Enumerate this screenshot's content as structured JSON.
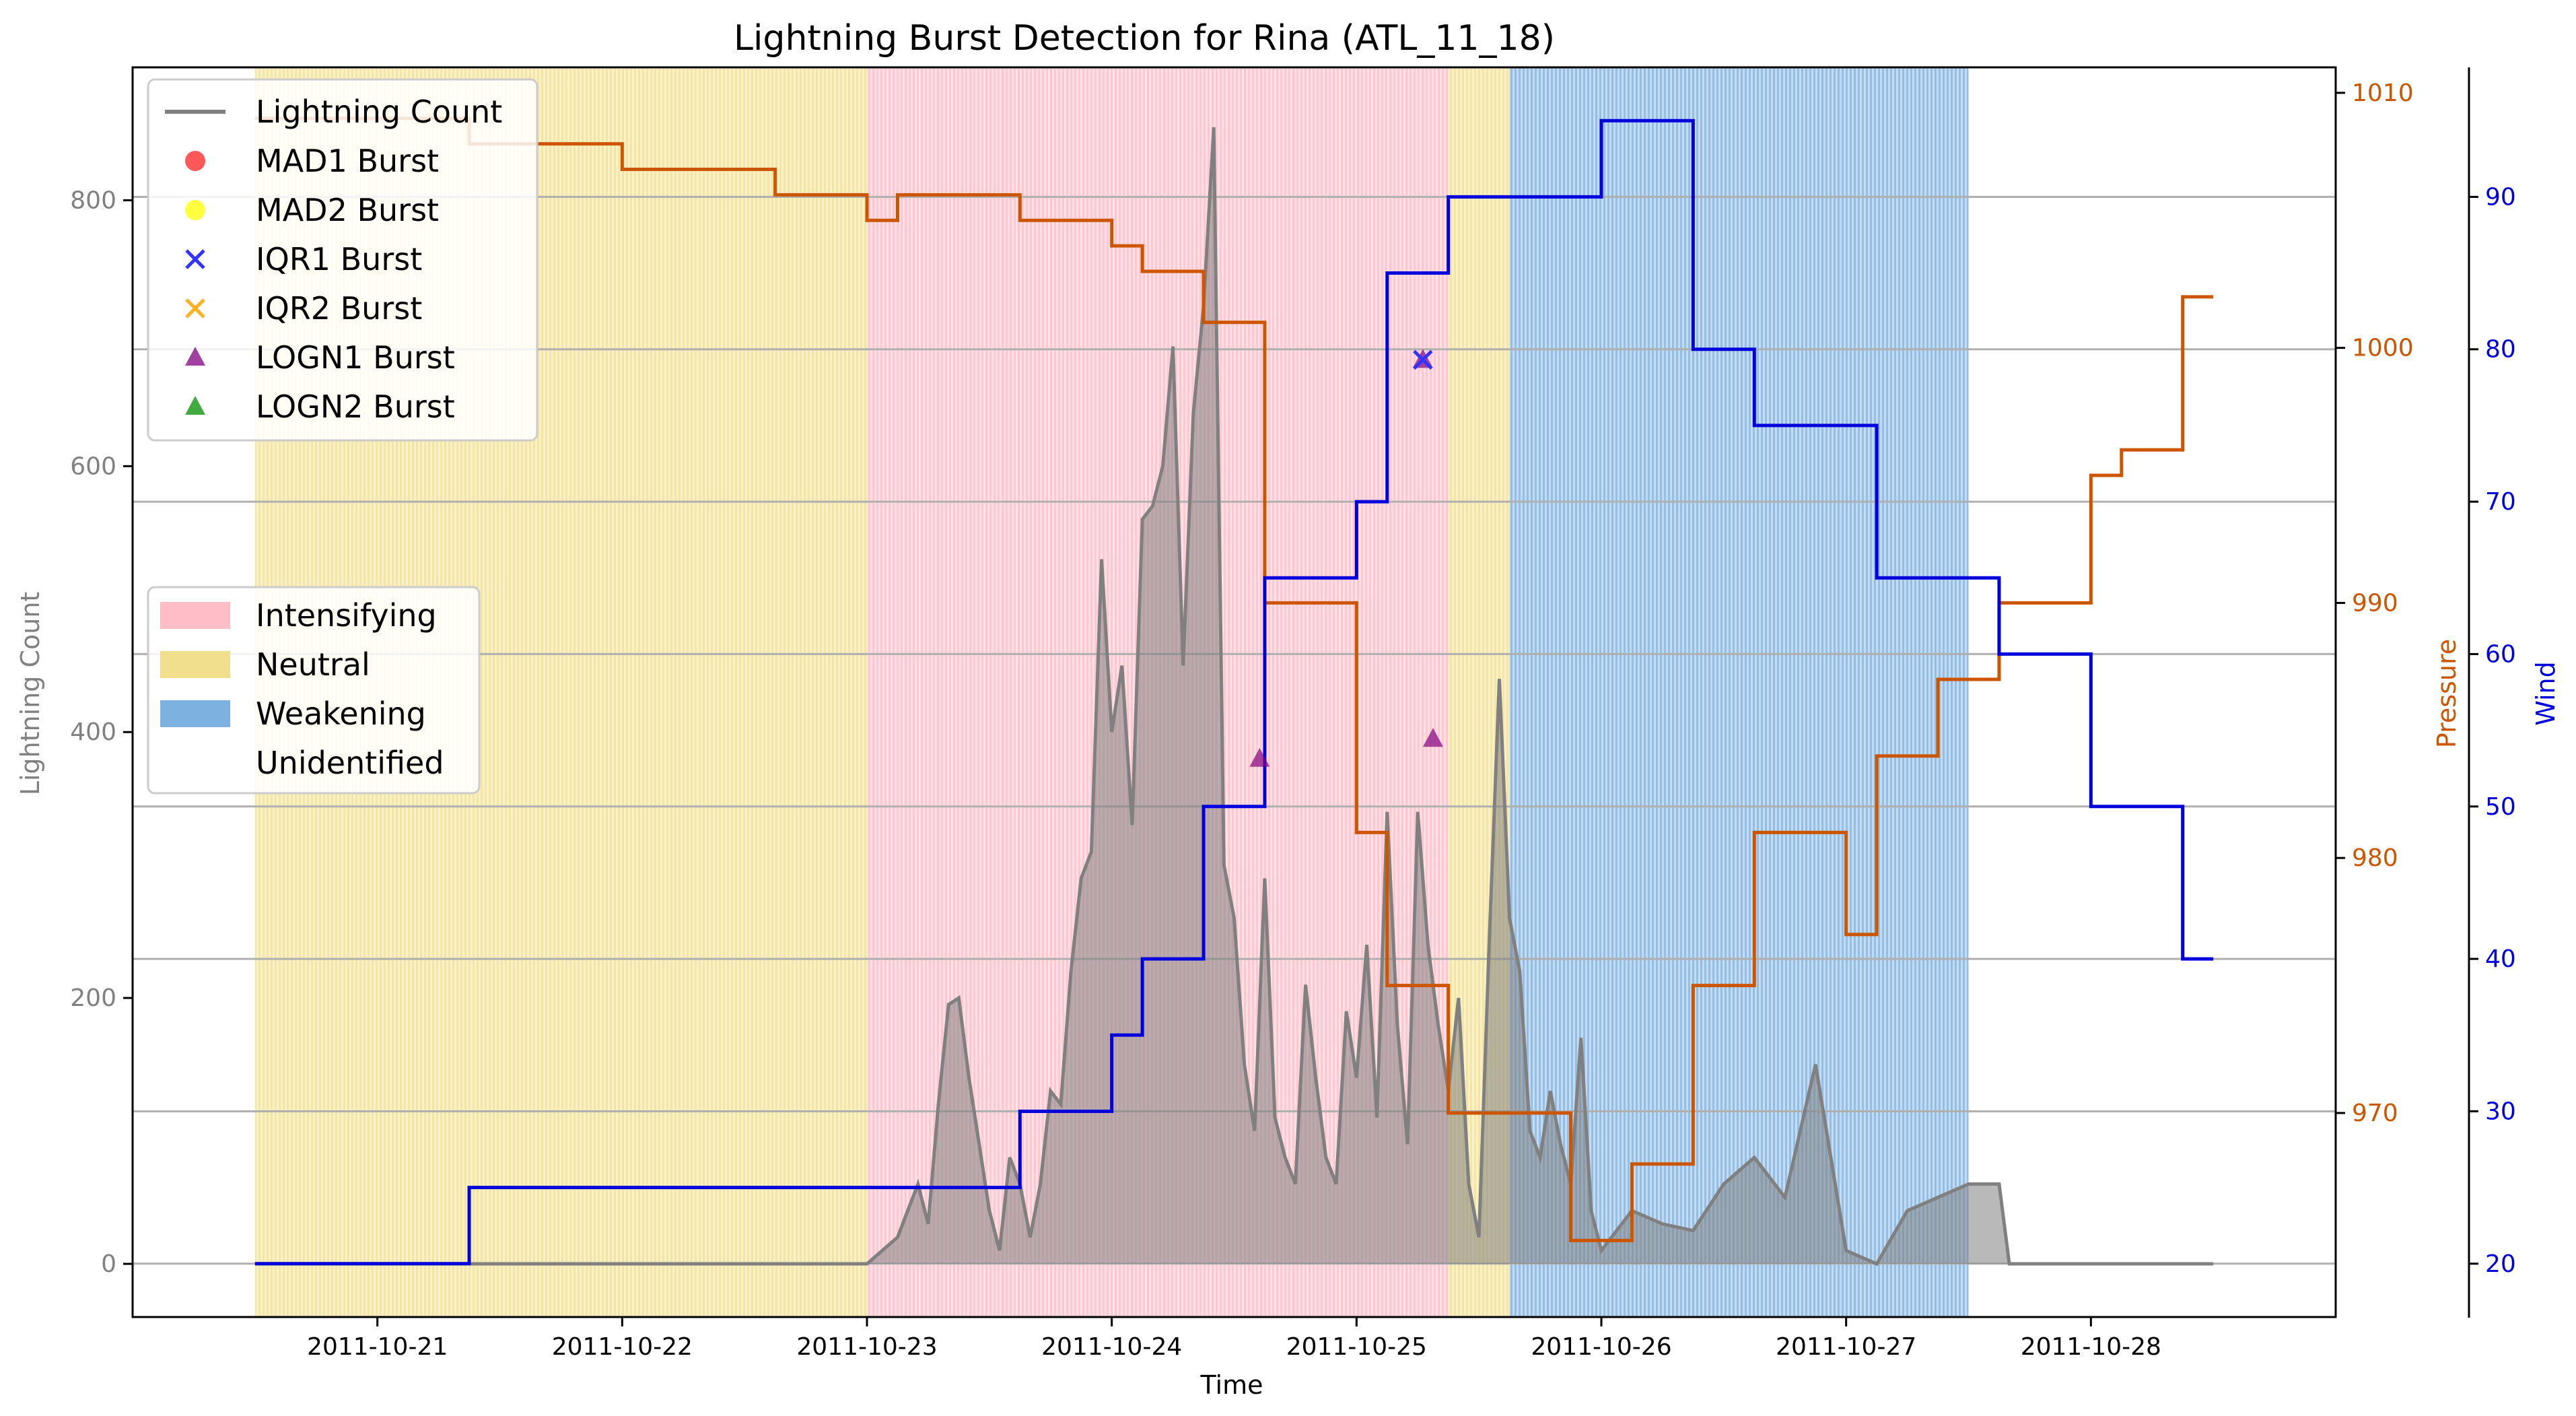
{
  "chart_data": {
    "type": "line",
    "title": "Lightning Burst Detection for Rina (ATL_11_18)",
    "xlabel": "Time",
    "ylabel_left": "Lightning Count",
    "ylabel_pressure": "Pressure",
    "ylabel_wind": "Wind",
    "x_range": [
      "2011-10-20T00:00",
      "2011-10-29T00:00"
    ],
    "x_ticks": [
      "2011-10-21",
      "2011-10-22",
      "2011-10-23",
      "2011-10-24",
      "2011-10-25",
      "2011-10-26",
      "2011-10-27",
      "2011-10-28"
    ],
    "lightning_ylim": [
      -40,
      900
    ],
    "lightning_yticks": [
      0,
      200,
      400,
      600,
      800
    ],
    "pressure_ylim": [
      962,
      1011
    ],
    "pressure_yticks": [
      970,
      980,
      990,
      1000,
      1010
    ],
    "wind_ylim": [
      16.5,
      98.5
    ],
    "wind_yticks": [
      20,
      30,
      40,
      50,
      60,
      70,
      80,
      90
    ],
    "grid": "horizontal-lines",
    "colors": {
      "intensifying": "#ffb6c1",
      "neutral": "#f0dc82",
      "weakening": "#6fa8dc",
      "lightning": "#808080",
      "pressure": "#cc5500",
      "wind": "#0000dd",
      "logn1": "#800080",
      "iqr1": "#3333ff"
    },
    "phases": [
      {
        "label": "Neutral",
        "start": "2011-10-20T12:00",
        "end": "2011-10-23T00:00"
      },
      {
        "label": "Intensifying",
        "start": "2011-10-23T00:00",
        "end": "2011-10-25T09:00"
      },
      {
        "label": "Neutral",
        "start": "2011-10-25T09:00",
        "end": "2011-10-25T15:00"
      },
      {
        "label": "Weakening",
        "start": "2011-10-25T15:00",
        "end": "2011-10-27T12:00"
      }
    ],
    "pressure_series": {
      "name": "Pressure",
      "points": [
        [
          "2011-10-20T12:00",
          1009
        ],
        [
          "2011-10-21T09:00",
          1009
        ],
        [
          "2011-10-21T09:00",
          1008
        ],
        [
          "2011-10-22T00:00",
          1008
        ],
        [
          "2011-10-22T00:00",
          1007
        ],
        [
          "2011-10-22T15:00",
          1007
        ],
        [
          "2011-10-22T15:00",
          1006
        ],
        [
          "2011-10-23T00:00",
          1006
        ],
        [
          "2011-10-23T00:00",
          1005
        ],
        [
          "2011-10-23T03:00",
          1005
        ],
        [
          "2011-10-23T03:00",
          1006
        ],
        [
          "2011-10-23T15:00",
          1006
        ],
        [
          "2011-10-23T15:00",
          1005
        ],
        [
          "2011-10-24T00:00",
          1005
        ],
        [
          "2011-10-24T00:00",
          1004
        ],
        [
          "2011-10-24T03:00",
          1004
        ],
        [
          "2011-10-24T03:00",
          1003
        ],
        [
          "2011-10-24T09:00",
          1003
        ],
        [
          "2011-10-24T09:00",
          1001
        ],
        [
          "2011-10-24T15:00",
          1001
        ],
        [
          "2011-10-24T15:00",
          990
        ],
        [
          "2011-10-25T00:00",
          990
        ],
        [
          "2011-10-25T00:00",
          981
        ],
        [
          "2011-10-25T03:00",
          981
        ],
        [
          "2011-10-25T03:00",
          975
        ],
        [
          "2011-10-25T09:00",
          975
        ],
        [
          "2011-10-25T09:00",
          970
        ],
        [
          "2011-10-25T21:00",
          970
        ],
        [
          "2011-10-25T21:00",
          965
        ],
        [
          "2011-10-26T03:00",
          965
        ],
        [
          "2011-10-26T03:00",
          968
        ],
        [
          "2011-10-26T09:00",
          968
        ],
        [
          "2011-10-26T09:00",
          975
        ],
        [
          "2011-10-26T15:00",
          975
        ],
        [
          "2011-10-26T15:00",
          981
        ],
        [
          "2011-10-27T00:00",
          981
        ],
        [
          "2011-10-27T00:00",
          977
        ],
        [
          "2011-10-27T03:00",
          977
        ],
        [
          "2011-10-27T03:00",
          984
        ],
        [
          "2011-10-27T09:00",
          984
        ],
        [
          "2011-10-27T09:00",
          987
        ],
        [
          "2011-10-27T15:00",
          987
        ],
        [
          "2011-10-27T15:00",
          990
        ],
        [
          "2011-10-28T00:00",
          990
        ],
        [
          "2011-10-28T00:00",
          995
        ],
        [
          "2011-10-28T03:00",
          995
        ],
        [
          "2011-10-28T03:00",
          996
        ],
        [
          "2011-10-28T09:00",
          996
        ],
        [
          "2011-10-28T09:00",
          1002
        ],
        [
          "2011-10-28T12:00",
          1002
        ]
      ]
    },
    "wind_series": {
      "name": "Wind",
      "points": [
        [
          "2011-10-20T12:00",
          20
        ],
        [
          "2011-10-21T09:00",
          20
        ],
        [
          "2011-10-21T09:00",
          25
        ],
        [
          "2011-10-23T15:00",
          25
        ],
        [
          "2011-10-23T15:00",
          30
        ],
        [
          "2011-10-24T00:00",
          30
        ],
        [
          "2011-10-24T00:00",
          35
        ],
        [
          "2011-10-24T03:00",
          35
        ],
        [
          "2011-10-24T03:00",
          40
        ],
        [
          "2011-10-24T09:00",
          40
        ],
        [
          "2011-10-24T09:00",
          50
        ],
        [
          "2011-10-24T15:00",
          50
        ],
        [
          "2011-10-24T15:00",
          65
        ],
        [
          "2011-10-25T00:00",
          65
        ],
        [
          "2011-10-25T00:00",
          70
        ],
        [
          "2011-10-25T03:00",
          70
        ],
        [
          "2011-10-25T03:00",
          85
        ],
        [
          "2011-10-25T09:00",
          85
        ],
        [
          "2011-10-25T09:00",
          90
        ],
        [
          "2011-10-26T00:00",
          90
        ],
        [
          "2011-10-26T00:00",
          95
        ],
        [
          "2011-10-26T09:00",
          95
        ],
        [
          "2011-10-26T09:00",
          80
        ],
        [
          "2011-10-26T15:00",
          80
        ],
        [
          "2011-10-26T15:00",
          75
        ],
        [
          "2011-10-27T03:00",
          75
        ],
        [
          "2011-10-27T03:00",
          65
        ],
        [
          "2011-10-27T15:00",
          65
        ],
        [
          "2011-10-27T15:00",
          60
        ],
        [
          "2011-10-28T00:00",
          60
        ],
        [
          "2011-10-28T00:00",
          50
        ],
        [
          "2011-10-28T09:00",
          50
        ],
        [
          "2011-10-28T09:00",
          40
        ],
        [
          "2011-10-28T12:00",
          40
        ]
      ]
    },
    "lightning_series": {
      "name": "Lightning Count",
      "points": [
        [
          "2011-10-20T12:00",
          0
        ],
        [
          "2011-10-23T00:00",
          0
        ],
        [
          "2011-10-23T03:00",
          20
        ],
        [
          "2011-10-23T04:00",
          40
        ],
        [
          "2011-10-23T05:00",
          60
        ],
        [
          "2011-10-23T06:00",
          30
        ],
        [
          "2011-10-23T07:00",
          120
        ],
        [
          "2011-10-23T08:00",
          195
        ],
        [
          "2011-10-23T09:00",
          200
        ],
        [
          "2011-10-23T10:00",
          140
        ],
        [
          "2011-10-23T11:00",
          90
        ],
        [
          "2011-10-23T12:00",
          40
        ],
        [
          "2011-10-23T13:00",
          10
        ],
        [
          "2011-10-23T14:00",
          80
        ],
        [
          "2011-10-23T15:00",
          60
        ],
        [
          "2011-10-23T16:00",
          20
        ],
        [
          "2011-10-23T17:00",
          60
        ],
        [
          "2011-10-23T18:00",
          130
        ],
        [
          "2011-10-23T19:00",
          120
        ],
        [
          "2011-10-23T20:00",
          220
        ],
        [
          "2011-10-23T21:00",
          290
        ],
        [
          "2011-10-23T22:00",
          310
        ],
        [
          "2011-10-23T23:00",
          530
        ],
        [
          "2011-10-24T00:00",
          400
        ],
        [
          "2011-10-24T01:00",
          450
        ],
        [
          "2011-10-24T02:00",
          330
        ],
        [
          "2011-10-24T03:00",
          560
        ],
        [
          "2011-10-24T04:00",
          570
        ],
        [
          "2011-10-24T05:00",
          600
        ],
        [
          "2011-10-24T06:00",
          690
        ],
        [
          "2011-10-24T07:00",
          450
        ],
        [
          "2011-10-24T08:00",
          640
        ],
        [
          "2011-10-24T09:00",
          720
        ],
        [
          "2011-10-24T10:00",
          855
        ],
        [
          "2011-10-24T11:00",
          300
        ],
        [
          "2011-10-24T12:00",
          260
        ],
        [
          "2011-10-24T13:00",
          150
        ],
        [
          "2011-10-24T14:00",
          100
        ],
        [
          "2011-10-24T15:00",
          290
        ],
        [
          "2011-10-24T16:00",
          110
        ],
        [
          "2011-10-24T17:00",
          80
        ],
        [
          "2011-10-24T18:00",
          60
        ],
        [
          "2011-10-24T19:00",
          210
        ],
        [
          "2011-10-24T20:00",
          140
        ],
        [
          "2011-10-24T21:00",
          80
        ],
        [
          "2011-10-24T22:00",
          60
        ],
        [
          "2011-10-24T23:00",
          190
        ],
        [
          "2011-10-25T00:00",
          140
        ],
        [
          "2011-10-25T01:00",
          240
        ],
        [
          "2011-10-25T02:00",
          110
        ],
        [
          "2011-10-25T03:00",
          340
        ],
        [
          "2011-10-25T04:00",
          180
        ],
        [
          "2011-10-25T05:00",
          90
        ],
        [
          "2011-10-25T06:00",
          340
        ],
        [
          "2011-10-25T07:00",
          240
        ],
        [
          "2011-10-25T08:00",
          180
        ],
        [
          "2011-10-25T09:00",
          130
        ],
        [
          "2011-10-25T10:00",
          200
        ],
        [
          "2011-10-25T11:00",
          60
        ],
        [
          "2011-10-25T12:00",
          20
        ],
        [
          "2011-10-25T13:00",
          240
        ],
        [
          "2011-10-25T14:00",
          440
        ],
        [
          "2011-10-25T15:00",
          260
        ],
        [
          "2011-10-25T16:00",
          220
        ],
        [
          "2011-10-25T17:00",
          100
        ],
        [
          "2011-10-25T18:00",
          80
        ],
        [
          "2011-10-25T19:00",
          130
        ],
        [
          "2011-10-25T20:00",
          90
        ],
        [
          "2011-10-25T21:00",
          60
        ],
        [
          "2011-10-25T22:00",
          170
        ],
        [
          "2011-10-25T23:00",
          40
        ],
        [
          "2011-10-26T00:00",
          10
        ],
        [
          "2011-10-26T03:00",
          40
        ],
        [
          "2011-10-26T06:00",
          30
        ],
        [
          "2011-10-26T09:00",
          25
        ],
        [
          "2011-10-26T12:00",
          60
        ],
        [
          "2011-10-26T15:00",
          80
        ],
        [
          "2011-10-26T18:00",
          50
        ],
        [
          "2011-10-26T21:00",
          150
        ],
        [
          "2011-10-27T00:00",
          10
        ],
        [
          "2011-10-27T03:00",
          0
        ],
        [
          "2011-10-27T06:00",
          40
        ],
        [
          "2011-10-27T09:00",
          50
        ],
        [
          "2011-10-27T12:00",
          60
        ],
        [
          "2011-10-27T15:00",
          60
        ],
        [
          "2011-10-27T16:00",
          0
        ],
        [
          "2011-10-28T12:00",
          0
        ]
      ]
    },
    "bursts": [
      {
        "method": "LOGN1 Burst",
        "time": "2011-10-24T14:30",
        "count": 380
      },
      {
        "method": "LOGN1 Burst",
        "time": "2011-10-25T06:30",
        "count": 680
      },
      {
        "method": "LOGN1 Burst",
        "time": "2011-10-25T07:30",
        "count": 395
      },
      {
        "method": "IQR1 Burst",
        "time": "2011-10-25T06:30",
        "count": 680
      }
    ],
    "legend_markers": [
      {
        "label": "Lightning Count",
        "marker": "line",
        "color": "#808080"
      },
      {
        "label": "MAD1 Burst",
        "marker": "circle",
        "color": "#ff2020"
      },
      {
        "label": "MAD2 Burst",
        "marker": "circle",
        "color": "#ffff00"
      },
      {
        "label": "IQR1 Burst",
        "marker": "x",
        "color": "#3333ff"
      },
      {
        "label": "IQR2 Burst",
        "marker": "x",
        "color": "#ffb020"
      },
      {
        "label": "LOGN1 Burst",
        "marker": "triangle",
        "color": "#800080"
      },
      {
        "label": "LOGN2 Burst",
        "marker": "triangle",
        "color": "#009000"
      }
    ],
    "legend_phases": [
      {
        "label": "Intensifying",
        "color": "#ffb6c1"
      },
      {
        "label": "Neutral",
        "color": "#f0dc82"
      },
      {
        "label": "Weakening",
        "color": "#6fa8dc"
      },
      {
        "label": "Unidentified",
        "color": "#ffffff"
      }
    ],
    "legend_placement": "upper-left"
  }
}
